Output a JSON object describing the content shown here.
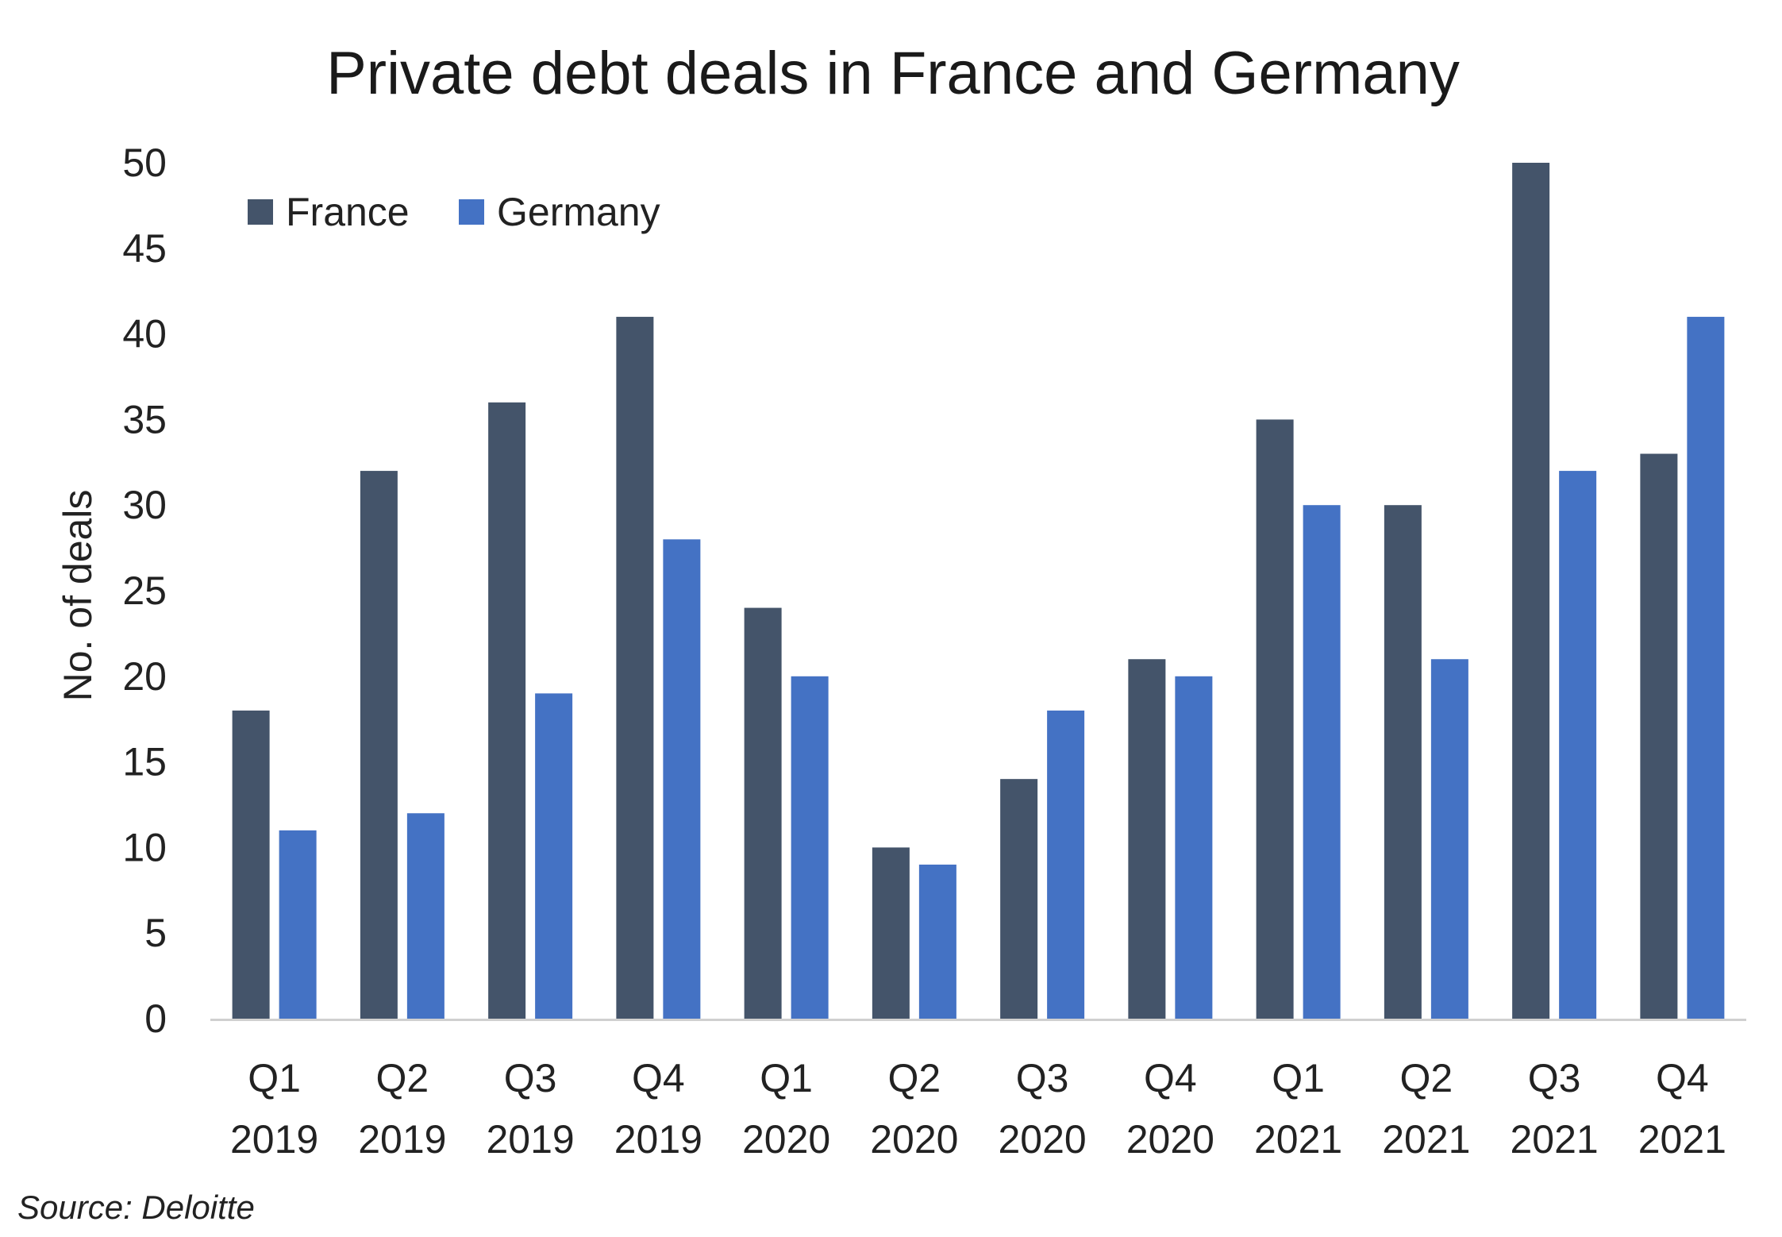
{
  "chart_data": {
    "type": "bar",
    "title": "Private debt deals in France and Germany",
    "ylabel": "No. of deals",
    "xlabel": "",
    "ylim": [
      0,
      50
    ],
    "yticks": [
      0,
      5,
      10,
      15,
      20,
      25,
      30,
      35,
      40,
      45,
      50
    ],
    "categories": [
      {
        "q": "Q1",
        "year": "2019"
      },
      {
        "q": "Q2",
        "year": "2019"
      },
      {
        "q": "Q3",
        "year": "2019"
      },
      {
        "q": "Q4",
        "year": "2019"
      },
      {
        "q": "Q1",
        "year": "2020"
      },
      {
        "q": "Q2",
        "year": "2020"
      },
      {
        "q": "Q3",
        "year": "2020"
      },
      {
        "q": "Q4",
        "year": "2020"
      },
      {
        "q": "Q1",
        "year": "2021"
      },
      {
        "q": "Q2",
        "year": "2021"
      },
      {
        "q": "Q3",
        "year": "2021"
      },
      {
        "q": "Q4",
        "year": "2021"
      }
    ],
    "series": [
      {
        "name": "France",
        "color": "#44546a",
        "values": [
          18,
          32,
          36,
          41,
          24,
          10,
          14,
          21,
          35,
          30,
          50,
          33
        ]
      },
      {
        "name": "Germany",
        "color": "#4472c4",
        "values": [
          11,
          12,
          19,
          28,
          20,
          9,
          18,
          20,
          30,
          21,
          32,
          41
        ]
      }
    ],
    "grid": false,
    "legend_position": "top-left",
    "source": "Source: Deloitte"
  }
}
